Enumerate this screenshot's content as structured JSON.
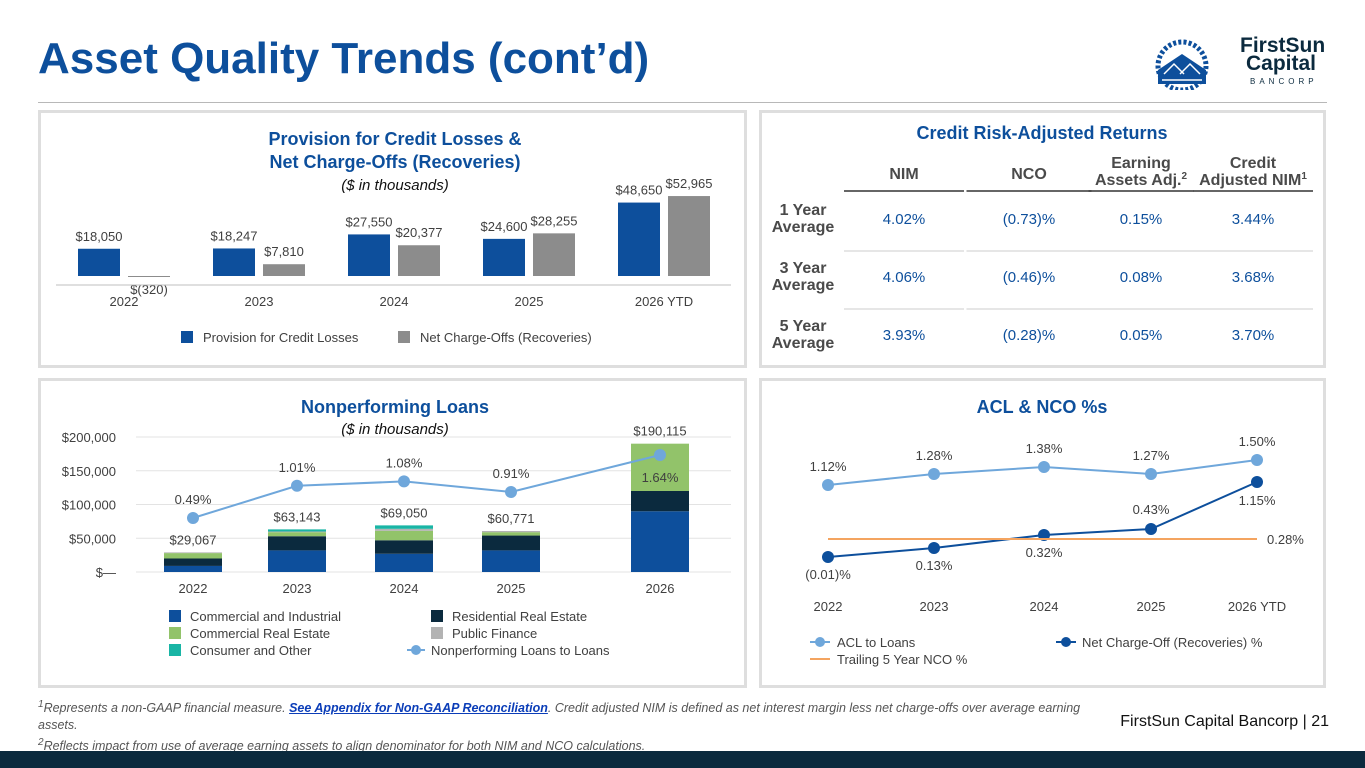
{
  "page": {
    "title": "Asset Quality Trends (cont’d)",
    "brand_line1": "FirstSun",
    "brand_line2": "Capital",
    "brand_line3": "BANCORP",
    "footer_company": "FirstSun Capital Bancorp",
    "footer_separator": "|",
    "page_number": "21",
    "footnote1_mark": "1",
    "footnote1_text": "Represents a non-GAAP financial measure. ",
    "footnote1_link": "See Appendix for Non-GAAP Reconciliation",
    "footnote1_rest": ". Credit adjusted NIM is defined as net interest margin less net charge-offs over average earning assets.",
    "footnote2_mark": "2",
    "footnote2_text": "Reflects impact from use of average earning assets to align denominator for both NIM and NCO calculations.",
    "colors": {
      "brand": "#0d4f9c",
      "gray": "#8c8c8c",
      "dark_navy": "#0b2a3e",
      "light_blue": "#6fa7db",
      "orange": "#f4a460",
      "green": "#92c36a",
      "teal": "#19b5a5",
      "light_gray": "#b3b3b3"
    }
  },
  "chart_data": [
    {
      "type": "bar",
      "title_line1": "Provision for Credit Losses &",
      "title_line2": "Net Charge-Offs (Recoveries)",
      "subtitle": "($ in thousands)",
      "categories": [
        "2022",
        "2023",
        "2024",
        "2025",
        "2026 YTD"
      ],
      "series": [
        {
          "name": "Provision for Credit Losses",
          "color": "#0d4f9c",
          "values": [
            18050,
            18247,
            27550,
            24600,
            48650
          ],
          "labels": [
            "$18,050",
            "$18,247",
            "$27,550",
            "$24,600",
            "$48,650"
          ]
        },
        {
          "name": "Net Charge-Offs (Recoveries)",
          "color": "#8c8c8c",
          "values": [
            -320,
            7810,
            20377,
            28255,
            52965
          ],
          "labels": [
            "$(320)",
            "$7,810",
            "$20,377",
            "$28,255",
            "$52,965"
          ]
        }
      ],
      "legend_position": "bottom"
    },
    {
      "type": "table",
      "title": "Credit Risk-Adjusted Returns",
      "columns": [
        {
          "line1": "NIM",
          "line2": ""
        },
        {
          "line1": "NCO",
          "line2": ""
        },
        {
          "line1": "Earning",
          "line2": "Assets Adj.",
          "sup": "2"
        },
        {
          "line1": "Credit",
          "line2": "Adjusted NIM",
          "sup": "1"
        }
      ],
      "rows": [
        {
          "line1": "1 Year",
          "line2": "Average",
          "values": [
            "4.02%",
            "(0.73)%",
            "0.15%",
            "3.44%"
          ]
        },
        {
          "line1": "3 Year",
          "line2": "Average",
          "values": [
            "4.06%",
            "(0.46)%",
            "0.08%",
            "3.68%"
          ]
        },
        {
          "line1": "5 Year",
          "line2": "Average",
          "values": [
            "3.93%",
            "(0.28)%",
            "0.05%",
            "3.70%"
          ]
        }
      ]
    },
    {
      "type": "bar",
      "stacked": true,
      "title": "Nonperforming Loans",
      "subtitle": "($ in thousands)",
      "categories": [
        "2022",
        "2023",
        "2024",
        "2025",
        "2026"
      ],
      "y_ticks": [
        "$200,000",
        "$150,000",
        "$100,000",
        "$50,000",
        "$—"
      ],
      "ylim": [
        0,
        200000
      ],
      "totals": [
        29067,
        63143,
        69050,
        60771,
        190115
      ],
      "total_labels": [
        "$29,067",
        "$63,143",
        "$69,050",
        "$60,771",
        "$190,115"
      ],
      "series": [
        {
          "name": "Commercial and Industrial",
          "color": "#0d4f9c",
          "values": [
            9000,
            32000,
            27000,
            32000,
            90000
          ]
        },
        {
          "name": "Residential Real Estate",
          "color": "#0b2a3e",
          "values": [
            11000,
            21000,
            20000,
            22000,
            30000
          ]
        },
        {
          "name": "Commercial Real Estate",
          "color": "#92c36a",
          "values": [
            8000,
            6000,
            14000,
            5000,
            70115
          ]
        },
        {
          "name": "Public Finance",
          "color": "#b3b3b3",
          "values": [
            1067,
            1000,
            3000,
            1771,
            0
          ]
        },
        {
          "name": "Consumer and Other",
          "color": "#19b5a5",
          "values": [
            0,
            3143,
            5050,
            0,
            0
          ]
        }
      ],
      "line_series": {
        "name": "Nonperforming Loans to Loans",
        "color": "#6fa7db",
        "values": [
          0.49,
          1.01,
          1.08,
          0.91,
          1.64
        ],
        "labels": [
          "0.49%",
          "1.01%",
          "1.08%",
          "0.91%",
          "1.64%"
        ]
      },
      "legend_position": "bottom"
    },
    {
      "type": "line",
      "title": "ACL & NCO %s",
      "categories": [
        "2022",
        "2023",
        "2024",
        "2025",
        "2026 YTD"
      ],
      "series": [
        {
          "name": "ACL to Loans",
          "color": "#6fa7db",
          "values": [
            1.12,
            1.28,
            1.38,
            1.27,
            1.5
          ],
          "labels": [
            "1.12%",
            "1.28%",
            "1.38%",
            "1.27%",
            "1.50%"
          ]
        },
        {
          "name": "Net Charge-Off (Recoveries) %",
          "color": "#0d4f9c",
          "values": [
            -0.01,
            0.13,
            0.32,
            0.43,
            1.15
          ],
          "labels": [
            "(0.01)%",
            "0.13%",
            "0.32%",
            "0.43%",
            "1.15%"
          ]
        },
        {
          "name": "Trailing 5 Year NCO %",
          "color": "#f4a460",
          "values": [
            0.28,
            0.28,
            0.28,
            0.28,
            0.28
          ],
          "labels": [
            "0.28%"
          ]
        }
      ],
      "legend_position": "bottom"
    }
  ]
}
